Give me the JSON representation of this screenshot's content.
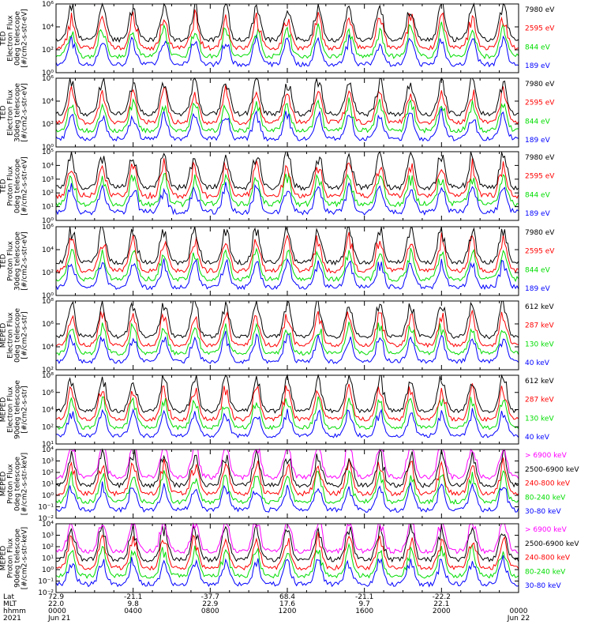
{
  "chart_data": {
    "type": "line",
    "x_range": [
      "Jun 21 2021 00:00",
      "Jun 22 2021 00:00"
    ],
    "panels": [
      {
        "ylabel": [
          "TED",
          "Electron Flux",
          "0deg telescope",
          "[#/cm2-s-str-eV]"
        ],
        "yticks": [
          "10⁶",
          "10⁴",
          "10²",
          "10⁰"
        ],
        "ylog": [
          0,
          6
        ],
        "legend": [
          {
            "label": "7980 eV",
            "color": "#000000"
          },
          {
            "label": "2595 eV",
            "color": "#ff0000"
          },
          {
            "label": "844 eV",
            "color": "#00dd00"
          },
          {
            "label": "189 eV",
            "color": "#0000ff"
          }
        ]
      },
      {
        "ylabel": [
          "TED",
          "Electron Flux",
          "30deg telescope",
          "[#/cm2-s-str-eV]"
        ],
        "yticks": [
          "10⁶",
          "10⁴",
          "10²",
          "10⁰"
        ],
        "ylog": [
          0,
          6
        ],
        "legend": [
          {
            "label": "7980 eV",
            "color": "#000000"
          },
          {
            "label": "2595 eV",
            "color": "#ff0000"
          },
          {
            "label": "844 eV",
            "color": "#00dd00"
          },
          {
            "label": "189 eV",
            "color": "#0000ff"
          }
        ]
      },
      {
        "ylabel": [
          "TED",
          "Proton Flux",
          "0deg telescope",
          "[#/cm2-s-str-eV]"
        ],
        "yticks": [
          "10⁵",
          "10⁴",
          "10³",
          "10²",
          "10¹",
          "10⁰"
        ],
        "ylog": [
          0,
          5
        ],
        "legend": [
          {
            "label": "7980 eV",
            "color": "#000000"
          },
          {
            "label": "2595 eV",
            "color": "#ff0000"
          },
          {
            "label": "844 eV",
            "color": "#00dd00"
          },
          {
            "label": "189 eV",
            "color": "#0000ff"
          }
        ]
      },
      {
        "ylabel": [
          "TED",
          "Proton Flux",
          "30deg telescope",
          "[#/cm2-s-str-eV]"
        ],
        "yticks": [
          "10⁶",
          "10⁴",
          "10²",
          "10⁰"
        ],
        "ylog": [
          0,
          6
        ],
        "legend": [
          {
            "label": "7980 eV",
            "color": "#000000"
          },
          {
            "label": "2595 eV",
            "color": "#ff0000"
          },
          {
            "label": "844 eV",
            "color": "#00dd00"
          },
          {
            "label": "189 eV",
            "color": "#0000ff"
          }
        ]
      },
      {
        "ylabel": [
          "MEPED",
          "Electron Flux",
          "0deg telescope",
          "[#/cm2-s-str]"
        ],
        "yticks": [
          "10⁸",
          "10⁶",
          "10⁴",
          "10²"
        ],
        "ylog": [
          1,
          8
        ],
        "legend": [
          {
            "label": "612 keV",
            "color": "#000000"
          },
          {
            "label": "287 keV",
            "color": "#ff0000"
          },
          {
            "label": "130 keV",
            "color": "#00dd00"
          },
          {
            "label": "40 keV",
            "color": "#0000ff"
          }
        ]
      },
      {
        "ylabel": [
          "MEPED",
          "Electron Flux",
          "90deg telescope",
          "[#/cm2-s-str]"
        ],
        "yticks": [
          "10⁸",
          "10⁶",
          "10⁴",
          "10²",
          "10¹"
        ],
        "ylog": [
          1,
          8
        ],
        "legend": [
          {
            "label": "612 keV",
            "color": "#000000"
          },
          {
            "label": "287 keV",
            "color": "#ff0000"
          },
          {
            "label": "130 keV",
            "color": "#00dd00"
          },
          {
            "label": "40 keV",
            "color": "#0000ff"
          }
        ]
      },
      {
        "ylabel": [
          "MEPED",
          "Proton Flux",
          "0deg telescope",
          "[#/cm2-s-str-keV]"
        ],
        "yticks": [
          "10⁴",
          "10³",
          "10²",
          "10¹",
          "10⁰",
          "10⁻¹",
          "10⁻²"
        ],
        "ylog": [
          -2,
          4
        ],
        "legend": [
          {
            "label": "> 6900 keV",
            "color": "#ff00ff"
          },
          {
            "label": "2500-6900 keV",
            "color": "#000000"
          },
          {
            "label": "240-800 keV",
            "color": "#ff0000"
          },
          {
            "label": "80-240 keV",
            "color": "#00dd00"
          },
          {
            "label": "30-80 keV",
            "color": "#0000ff"
          }
        ]
      },
      {
        "ylabel": [
          "MEPED",
          "Proton Flux",
          "90deg telescope",
          "[#/cm2-s-str-keV]"
        ],
        "yticks": [
          "10⁴",
          "10³",
          "10²",
          "10¹",
          "10⁰",
          "10⁻¹",
          "10⁻²"
        ],
        "ylog": [
          -2,
          4
        ],
        "legend": [
          {
            "label": "> 6900 keV",
            "color": "#ff00ff"
          },
          {
            "label": "2500-6900 keV",
            "color": "#000000"
          },
          {
            "label": "240-800 keV",
            "color": "#ff0000"
          },
          {
            "label": "80-240 keV",
            "color": "#00dd00"
          },
          {
            "label": "30-80 keV",
            "color": "#0000ff"
          }
        ]
      }
    ],
    "xaxis": {
      "row_labels": [
        "Lat",
        "MLT",
        "hhmm",
        "2021"
      ],
      "columns": [
        {
          "hour": 0,
          "lat": "72.9",
          "mlt": "22.0",
          "hhmm": "0000",
          "date": "Jun 21"
        },
        {
          "hour": 4,
          "lat": "-21.1",
          "mlt": "9.8",
          "hhmm": "0400",
          "date": ""
        },
        {
          "hour": 8,
          "lat": "-37.7",
          "mlt": "22.9",
          "hhmm": "0800",
          "date": ""
        },
        {
          "hour": 12,
          "lat": "68.4",
          "mlt": "17.6",
          "hhmm": "1200",
          "date": ""
        },
        {
          "hour": 16,
          "lat": "-21.1",
          "mlt": "9.7",
          "hhmm": "1600",
          "date": ""
        },
        {
          "hour": 20,
          "lat": "-22.2",
          "mlt": "22.1",
          "hhmm": "2000",
          "date": ""
        },
        {
          "hour": 24,
          "lat": "",
          "mlt": "",
          "hhmm": "0000",
          "date": "Jun 22"
        }
      ]
    }
  }
}
